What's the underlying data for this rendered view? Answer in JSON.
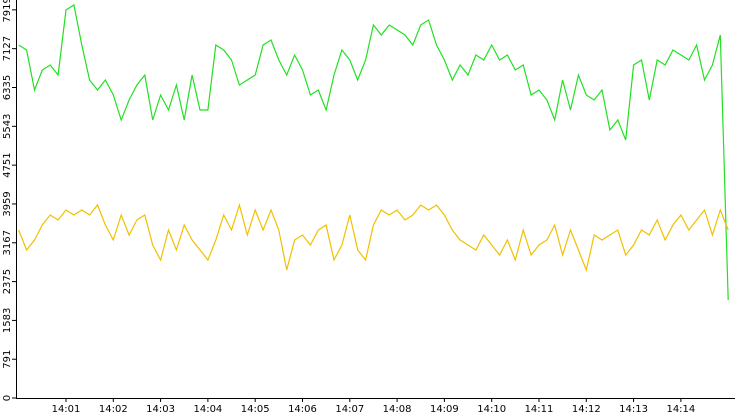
{
  "chart_data": {
    "type": "line",
    "categories": [
      null,
      null,
      null,
      null,
      null,
      null,
      "14:01",
      null,
      null,
      null,
      null,
      null,
      "14:02",
      null,
      null,
      null,
      null,
      null,
      "14:03",
      null,
      null,
      null,
      null,
      null,
      "14:04",
      null,
      null,
      null,
      null,
      null,
      "14:05",
      null,
      null,
      null,
      null,
      null,
      "14:06",
      null,
      null,
      null,
      null,
      null,
      "14:07",
      null,
      null,
      null,
      null,
      null,
      "14:08",
      null,
      null,
      null,
      null,
      null,
      "14:09",
      null,
      null,
      null,
      null,
      null,
      "14:10",
      null,
      null,
      null,
      null,
      null,
      "14:11",
      null,
      null,
      null,
      null,
      null,
      "14:12",
      null,
      null,
      null,
      null,
      null,
      "14:13",
      null,
      null,
      null,
      null,
      null,
      "14:14",
      null,
      null,
      null,
      null,
      null,
      null
    ],
    "series": [
      {
        "color": "#22e022",
        "values": [
          7201,
          7100,
          6284,
          6692,
          6794,
          6590,
          7916,
          8018,
          7201,
          6488,
          6284,
          6488,
          6182,
          5672,
          6080,
          6386,
          6590,
          5672,
          6182,
          5876,
          6386,
          5672,
          6590,
          5876,
          5876,
          7201,
          7100,
          6896,
          6386,
          6488,
          6590,
          7201,
          7304,
          6896,
          6590,
          6998,
          6692,
          6182,
          6284,
          5876,
          6590,
          7100,
          6896,
          6488,
          6896,
          7610,
          7406,
          7610,
          7508,
          7406,
          7201,
          7610,
          7712,
          7201,
          6896,
          6488,
          6794,
          6590,
          6998,
          6896,
          7201,
          6896,
          6998,
          6692,
          6794,
          6182,
          6284,
          6080,
          5672,
          6488,
          5876,
          6590,
          6182,
          6080,
          6284,
          5468,
          5672,
          5264,
          6794,
          6896,
          6080,
          6896,
          6794,
          7100,
          6998,
          6896,
          7201,
          6488,
          6794,
          7406,
          2000
        ]
      },
      {
        "color": "#f0c000",
        "values": [
          3428,
          3020,
          3224,
          3529,
          3733,
          3631,
          3836,
          3733,
          3836,
          3733,
          3938,
          3529,
          3224,
          3733,
          3326,
          3631,
          3733,
          3122,
          2815,
          3428,
          3020,
          3529,
          3224,
          3020,
          2815,
          3224,
          3733,
          3428,
          3938,
          3326,
          3836,
          3428,
          3836,
          3428,
          2611,
          3224,
          3326,
          3122,
          3428,
          3529,
          2815,
          3122,
          3733,
          3020,
          2815,
          3529,
          3836,
          3733,
          3836,
          3631,
          3733,
          3938,
          3836,
          3938,
          3733,
          3428,
          3224,
          3122,
          3020,
          3326,
          3122,
          2917,
          3224,
          2815,
          3428,
          2917,
          3122,
          3224,
          3529,
          2917,
          3428,
          3020,
          2611,
          3326,
          3224,
          3326,
          3428,
          2917,
          3122,
          3428,
          3326,
          3631,
          3224,
          3529,
          3733,
          3428,
          3631,
          3836,
          3326,
          3836,
          3428
        ]
      }
    ],
    "ylim": [
      0,
      8120
    ],
    "yticks": [
      0,
      791,
      1583,
      2375,
      3167,
      3959,
      4751,
      5543,
      6335,
      7127,
      7919
    ]
  }
}
